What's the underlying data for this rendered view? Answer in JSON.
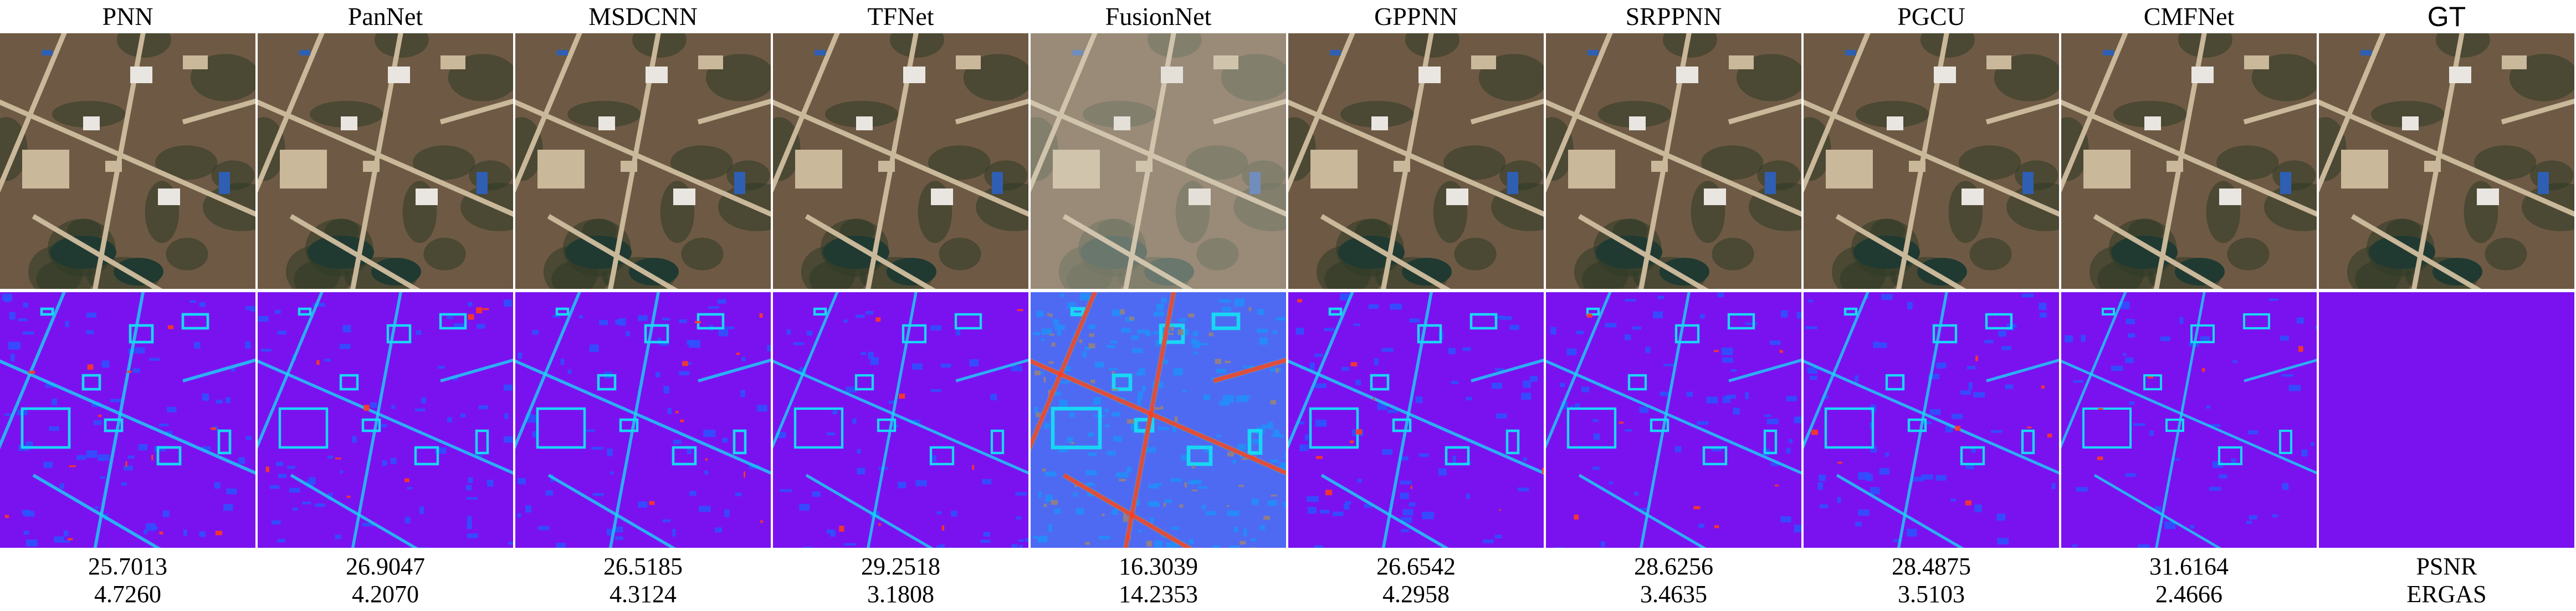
{
  "methods": [
    {
      "name": "PNN",
      "psnr": "25.7013",
      "ergas": "4.7260",
      "error_level": 0.28
    },
    {
      "name": "PanNet",
      "psnr": "26.9047",
      "ergas": "4.2070",
      "error_level": 0.24
    },
    {
      "name": "MSDCNN",
      "psnr": "26.5185",
      "ergas": "4.3124",
      "error_level": 0.25
    },
    {
      "name": "TFNet",
      "psnr": "29.2518",
      "ergas": "3.1808",
      "error_level": 0.21
    },
    {
      "name": "FusionNet",
      "psnr": "16.3039",
      "ergas": "14.2353",
      "error_level": 0.6
    },
    {
      "name": "GPPNN",
      "psnr": "26.6542",
      "ergas": "4.2958",
      "error_level": 0.25
    },
    {
      "name": "SRPPNN",
      "psnr": "28.6256",
      "ergas": "3.4635",
      "error_level": 0.22
    },
    {
      "name": "PGCU",
      "psnr": "28.4875",
      "ergas": "3.5103",
      "error_level": 0.22
    },
    {
      "name": "CMFNet",
      "psnr": "31.6164",
      "ergas": "2.4666",
      "error_level": 0.17
    }
  ],
  "gt": {
    "name": "GT",
    "metric_labels": [
      "PSNR",
      "ERGAS"
    ],
    "error_level": 0.0
  },
  "colors": {
    "error_map_base": "#7a12f0",
    "error_map_low": "#2a55ff",
    "error_map_mid": "#19d7f5",
    "error_map_high": "#ff3a1f",
    "rgb_ground": "#6e5a44",
    "rgb_vegetation": "#2f3a26",
    "rgb_road": "#c9b89a",
    "rgb_building_roof": "#e9e6e1",
    "rgb_blue_roof": "#2e5fb3",
    "rgb_water": "#203a32"
  }
}
